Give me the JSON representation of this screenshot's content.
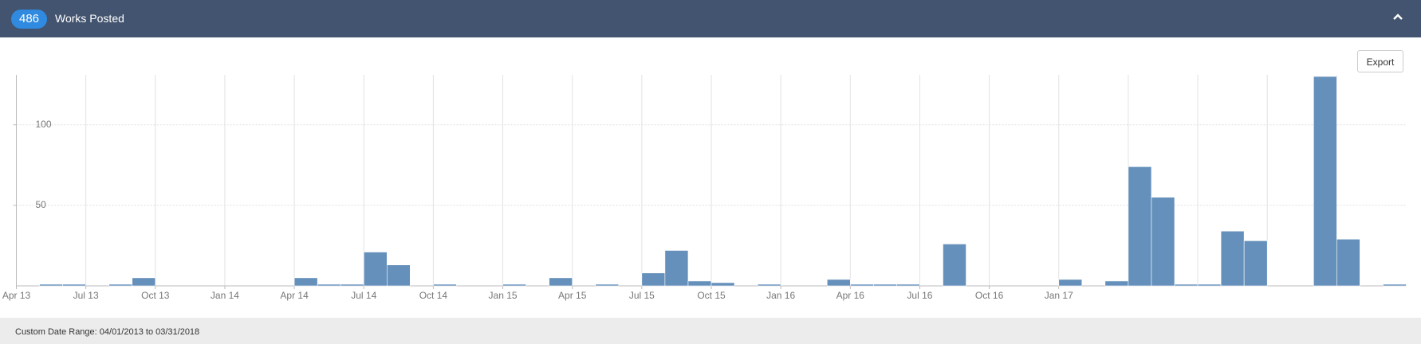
{
  "header": {
    "count": 486,
    "title": "Works Posted"
  },
  "export_label": "Export",
  "footer": "Custom Date Range: 04/01/2013 to 03/31/2018",
  "chart_data": {
    "type": "bar",
    "categories": [
      "Apr 13",
      null,
      null,
      "Jul 13",
      null,
      null,
      "Oct 13",
      null,
      null,
      "Jan 14",
      null,
      null,
      "Apr 14",
      null,
      null,
      "Jul 14",
      null,
      null,
      "Oct 14",
      null,
      null,
      "Jan 15",
      null,
      null,
      "Apr 15",
      null,
      null,
      "Jul 15",
      null,
      null,
      "Oct 15",
      null,
      null,
      "Jan 16",
      null,
      null,
      "Apr 16",
      null,
      null,
      "Jul 16",
      null,
      null,
      "Oct 16",
      null,
      null,
      "Jan 17",
      null,
      null,
      null,
      null,
      null,
      null,
      null,
      null,
      null,
      null,
      null,
      null,
      null,
      null
    ],
    "values": [
      0,
      1,
      1,
      0,
      1,
      5,
      0,
      0,
      0,
      0,
      0,
      0,
      5,
      1,
      1,
      21,
      13,
      0,
      1,
      0,
      0,
      1,
      0,
      5,
      0,
      1,
      0,
      8,
      22,
      3,
      2,
      0,
      1,
      0,
      0,
      4,
      1,
      1,
      1,
      0,
      26,
      0,
      0,
      0,
      0,
      4,
      0,
      3,
      74,
      55,
      1,
      1,
      34,
      28,
      0,
      0,
      130,
      29,
      0,
      1
    ],
    "color": "#6590bb",
    "ylim": [
      0,
      131
    ],
    "yticks": [
      50,
      100
    ],
    "grid": true
  }
}
